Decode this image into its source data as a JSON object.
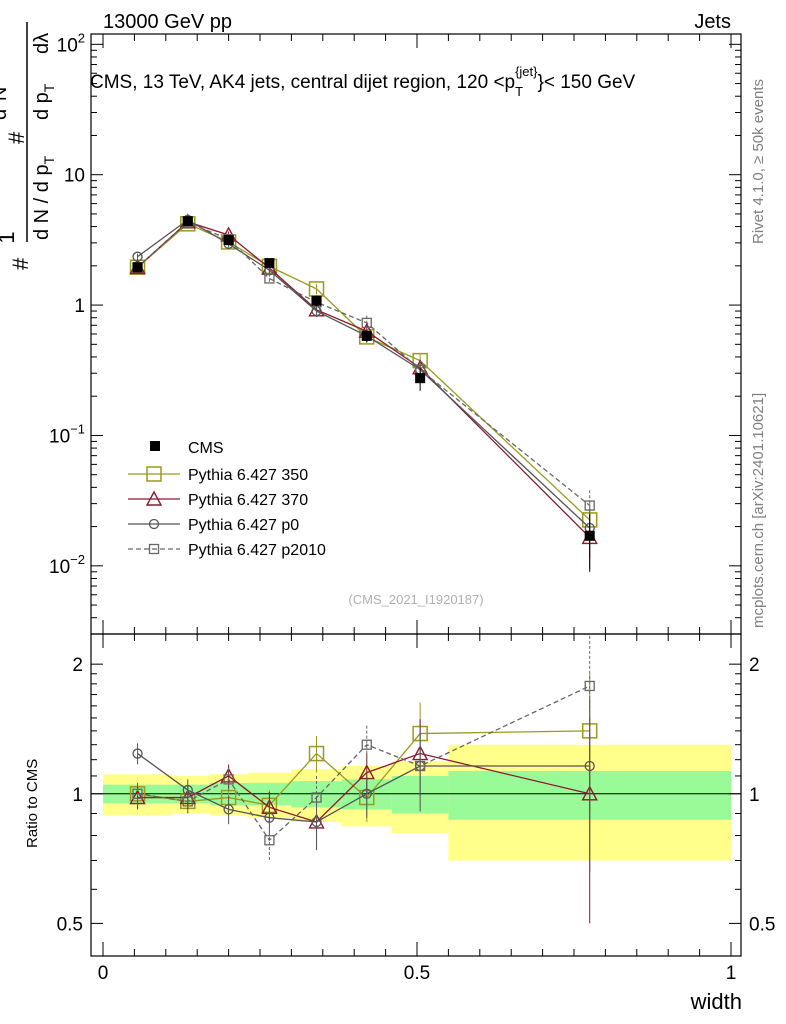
{
  "header": {
    "left": "13000 GeV pp",
    "right": "Jets"
  },
  "side": {
    "rivet": "Rivet 4.1.0, ≥ 50k events",
    "mcplots": "mcplots.cern.ch [arXiv:2401.10621]"
  },
  "chart_data": {
    "type": "line",
    "title": "CMS, 13 TeV, AK4 jets, central dijet region, 120 < p_T^{jet} < 150 GeV",
    "title_parts": {
      "main": "CMS, 13 TeV, AK4 jets, central dijet region, 120 <p",
      "sub": "T",
      "sup": "{jet}",
      "end": "}< 150 GeV"
    },
    "ylabel_parts": {
      "hash": "#",
      "one": "1",
      "dN": "d N / d p",
      "dN_sub": "T",
      "dN2": "d",
      "dN2_sup": "2",
      "dN2_N": "N",
      "dpt": "d p",
      "dpt_sub": "T",
      "dlam": "dλ"
    },
    "ratio_ylabel": "Ratio to CMS",
    "xlabel": "width",
    "watermark": "(CMS_2021_I1920187)",
    "xlim": [
      0,
      1
    ],
    "ylim": [
      0.003,
      120
    ],
    "ratio_ylim": [
      0.42,
      2.35
    ],
    "yscale": "log",
    "x_ticks": [
      {
        "value": 0,
        "label": "0"
      },
      {
        "value": 0.5,
        "label": "0.5"
      },
      {
        "value": 1,
        "label": "1"
      }
    ],
    "y_ticks": [
      {
        "value": 100,
        "label": "10",
        "sup": "2"
      },
      {
        "value": 10,
        "label": "10",
        "sup": ""
      },
      {
        "value": 1,
        "label": "1",
        "sup": ""
      },
      {
        "value": 0.1,
        "label": "10",
        "sup": "−1"
      },
      {
        "value": 0.01,
        "label": "10",
        "sup": "−2"
      }
    ],
    "ratio_ticks": [
      {
        "value": 0.5,
        "label": "0.5"
      },
      {
        "value": 1,
        "label": "1"
      },
      {
        "value": 2,
        "label": "2"
      }
    ],
    "bin_edges": [
      0,
      0.11,
      0.17,
      0.23,
      0.3,
      0.38,
      0.46,
      0.55,
      1.0
    ],
    "x": [
      0.055,
      0.135,
      0.2,
      0.265,
      0.34,
      0.42,
      0.505,
      0.775
    ],
    "data": {
      "name": "CMS",
      "values": [
        1.95,
        4.4,
        3.15,
        2.1,
        1.08,
        0.58,
        0.275,
        0.017
      ],
      "errors": [
        0.15,
        0.3,
        0.25,
        0.16,
        0.1,
        0.06,
        0.055,
        0.008
      ]
    },
    "band_green": [
      0.05,
      0.05,
      0.06,
      0.06,
      0.07,
      0.08,
      0.1,
      0.13
    ],
    "band_yellow": [
      0.11,
      0.1,
      0.11,
      0.12,
      0.14,
      0.16,
      0.19,
      0.3
    ],
    "series": [
      {
        "name": "Pythia 6.427 350",
        "color": "#9a9a1e",
        "marker": "square-open",
        "dashed": false,
        "values": [
          1.95,
          4.2,
          3.05,
          1.98,
          1.33,
          0.57,
          0.375,
          0.0225
        ],
        "errors": [
          0.12,
          0.3,
          0.2,
          0.14,
          0.12,
          0.06,
          0.05,
          0.008
        ],
        "ratio": [
          1.0,
          0.96,
          0.98,
          0.94,
          1.24,
          0.98,
          1.38,
          1.4
        ],
        "ratio_err": [
          0.06,
          0.06,
          0.07,
          0.08,
          0.12,
          0.12,
          0.25,
          0.5
        ]
      },
      {
        "name": "Pythia 6.427 370",
        "color": "#8b1a2e",
        "marker": "triangle-open",
        "dashed": false,
        "values": [
          1.95,
          4.35,
          3.45,
          1.92,
          0.92,
          0.63,
          0.33,
          0.0165
        ],
        "errors": [
          0.12,
          0.3,
          0.22,
          0.14,
          0.09,
          0.06,
          0.05,
          0.007
        ],
        "ratio": [
          0.98,
          0.98,
          1.1,
          0.93,
          0.86,
          1.12,
          1.24,
          1.0
        ],
        "ratio_err": [
          0.06,
          0.06,
          0.07,
          0.08,
          0.12,
          0.12,
          0.25,
          0.5
        ]
      },
      {
        "name": "Pythia 6.427 p0",
        "color": "#555555",
        "marker": "circle-open",
        "dashed": false,
        "values": [
          2.35,
          4.5,
          2.95,
          1.85,
          0.9,
          0.58,
          0.32,
          0.0195
        ],
        "errors": [
          0.13,
          0.3,
          0.2,
          0.14,
          0.09,
          0.06,
          0.05,
          0.008
        ],
        "ratio": [
          1.24,
          1.02,
          0.92,
          0.88,
          0.86,
          1.0,
          1.16,
          1.16
        ],
        "ratio_err": [
          0.07,
          0.06,
          0.07,
          0.08,
          0.12,
          0.12,
          0.25,
          0.5
        ]
      },
      {
        "name": "Pythia 6.427 p2010",
        "color": "#666666",
        "marker": "square-open-small",
        "dashed": true,
        "values": [
          1.95,
          4.3,
          3.2,
          1.6,
          1.05,
          0.73,
          0.32,
          0.029
        ],
        "errors": [
          0.12,
          0.3,
          0.2,
          0.14,
          0.09,
          0.1,
          0.05,
          0.009
        ],
        "ratio": [
          1.0,
          0.96,
          1.08,
          0.78,
          0.98,
          1.3,
          1.16,
          1.78
        ],
        "ratio_err": [
          0.06,
          0.06,
          0.07,
          0.08,
          0.12,
          0.14,
          0.25,
          0.55
        ]
      }
    ]
  }
}
